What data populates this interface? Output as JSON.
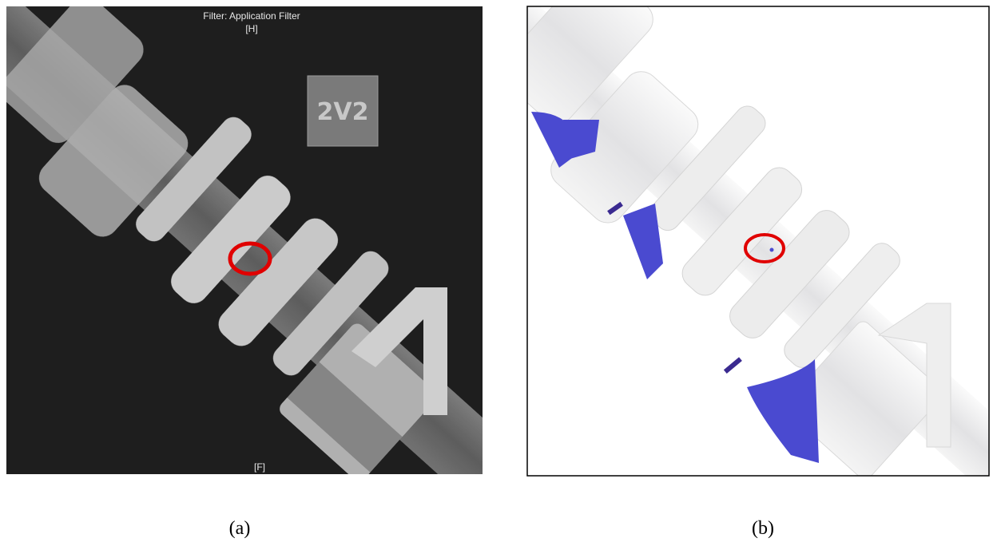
{
  "panels": [
    {
      "overlay_title": "Filter: Application Filter",
      "top_marker": "[H]",
      "bottom_marker": "[F]",
      "plate_label": "2V2",
      "caption": "(a)"
    },
    {
      "caption": "(b)"
    }
  ]
}
